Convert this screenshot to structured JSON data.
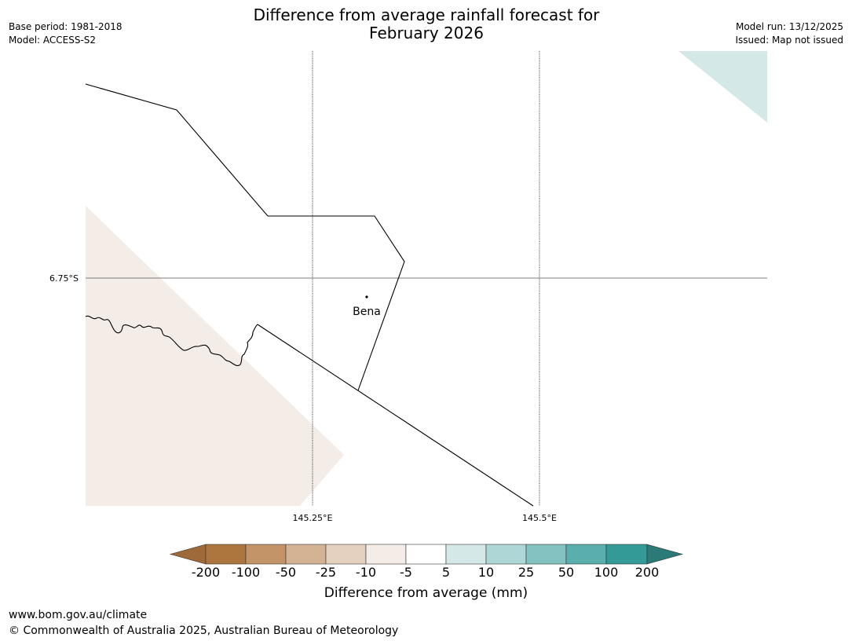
{
  "header": {
    "title_line1": "Difference from average rainfall forecast for",
    "title_line2": "February 2026",
    "base_period": "Base period: 1981-2018",
    "model": "Model: ACCESS-S2",
    "model_run": "Model run: 13/12/2025",
    "issued": "Issued: Map not issued"
  },
  "map": {
    "lat_label": "6.75°S",
    "lon_labels": [
      "145.25°E",
      "145.5°E"
    ],
    "place_name": "Bena",
    "colors": {
      "dry_fill": "#f4ede7",
      "wet_fill": "#d4e8e8",
      "border": "#000000",
      "grid": "#555555"
    }
  },
  "colorbar": {
    "title": "Difference from average (mm)",
    "tick_labels": [
      "-200",
      "-100",
      "-50",
      "-25",
      "-10",
      "-5",
      "5",
      "10",
      "25",
      "50",
      "100",
      "200"
    ],
    "colors": [
      "#9e6a3a",
      "#ad763e",
      "#c29468",
      "#d3b394",
      "#e5d1bf",
      "#f4ede7",
      "#ffffff",
      "#d4e8e8",
      "#aed6d6",
      "#83c2c0",
      "#5aaeac",
      "#339a98",
      "#2a7a78"
    ]
  },
  "footer": {
    "url": "www.bom.gov.au/climate",
    "copyright": "© Commonwealth of Australia 2025, Australian Bureau of Meteorology"
  }
}
